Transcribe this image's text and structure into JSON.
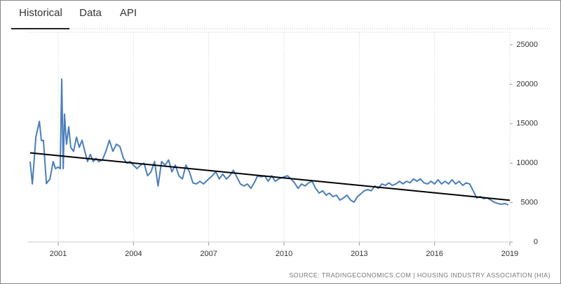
{
  "tabs": [
    "Historical",
    "Data",
    "API"
  ],
  "source": "SOURCE: TRADINGECONOMICS.COM  |  HOUSING INDUSTRY ASSOCIATION (HIA)",
  "chart_data": {
    "type": "line",
    "x": [
      1999.88,
      1999.97,
      2000.11,
      2000.25,
      2000.33,
      2000.41,
      2000.53,
      2000.67,
      2000.8,
      2000.89,
      2001.0,
      2001.08,
      2001.14,
      2001.2,
      2001.25,
      2001.33,
      2001.42,
      2001.5,
      2001.61,
      2001.73,
      2001.84,
      2001.95,
      2002.06,
      2002.17,
      2002.28,
      2002.4,
      2002.51,
      2002.62,
      2002.76,
      2002.9,
      2003.04,
      2003.18,
      2003.32,
      2003.46,
      2003.6,
      2003.74,
      2003.87,
      2004.0,
      2004.14,
      2004.28,
      2004.42,
      2004.56,
      2004.7,
      2004.84,
      2004.98,
      2005.12,
      2005.26,
      2005.4,
      2005.53,
      2005.67,
      2005.81,
      2005.95,
      2006.09,
      2006.23,
      2006.37,
      2006.51,
      2006.65,
      2006.79,
      2007.0,
      2007.14,
      2007.28,
      2007.42,
      2007.56,
      2007.7,
      2007.84,
      2007.98,
      2008.12,
      2008.26,
      2008.4,
      2008.54,
      2008.68,
      2008.81,
      2008.95,
      2009.09,
      2009.23,
      2009.37,
      2009.51,
      2009.65,
      2009.79,
      2010.0,
      2010.14,
      2010.28,
      2010.42,
      2010.56,
      2010.7,
      2010.84,
      2010.98,
      2011.12,
      2011.26,
      2011.4,
      2011.54,
      2011.68,
      2011.81,
      2011.95,
      2012.09,
      2012.23,
      2012.37,
      2012.51,
      2012.65,
      2012.79,
      2012.93,
      2013.06,
      2013.2,
      2013.34,
      2013.48,
      2013.62,
      2013.76,
      2013.9,
      2014.04,
      2014.18,
      2014.32,
      2014.46,
      2014.6,
      2014.74,
      2014.88,
      2015.02,
      2015.16,
      2015.3,
      2015.44,
      2015.58,
      2015.72,
      2015.86,
      2016.0,
      2016.14,
      2016.28,
      2016.42,
      2016.56,
      2016.7,
      2016.84,
      2016.98,
      2017.12,
      2017.26,
      2017.4,
      2017.54,
      2017.68,
      2017.82,
      2017.96,
      2018.1,
      2018.24,
      2018.38,
      2018.52,
      2018.66,
      2018.8,
      2018.94
    ],
    "series": [
      {
        "color": "#4a7ebb",
        "values": [
          10200,
          7360,
          13300,
          15300,
          12850,
          12900,
          7400,
          8000,
          10200,
          9300,
          9500,
          9300,
          20650,
          9300,
          16200,
          12400,
          14600,
          12000,
          11500,
          13300,
          12000,
          12900,
          11500,
          10200,
          11100,
          10200,
          10600,
          10200,
          10400,
          11500,
          12900,
          11500,
          12400,
          12100,
          10600,
          10000,
          10200,
          9750,
          9300,
          9750,
          10000,
          8400,
          8900,
          10200,
          7100,
          10200,
          9750,
          10400,
          8900,
          9750,
          8400,
          8000,
          9750,
          8900,
          7500,
          7360,
          7700,
          7360,
          8000,
          8400,
          8900,
          8000,
          8600,
          8000,
          8400,
          9100,
          8250,
          7360,
          7100,
          7360,
          6800,
          7500,
          8400,
          8250,
          8400,
          7700,
          8400,
          7700,
          8000,
          8250,
          8400,
          8000,
          7500,
          6800,
          7360,
          7100,
          7500,
          7700,
          6800,
          6200,
          6500,
          5940,
          6200,
          5760,
          5940,
          5320,
          5590,
          5940,
          5320,
          5050,
          5760,
          6100,
          6500,
          6650,
          6500,
          7100,
          6800,
          7360,
          7180,
          7500,
          7180,
          7360,
          7700,
          7360,
          7700,
          7500,
          8000,
          7700,
          8000,
          7500,
          7360,
          7700,
          7360,
          7900,
          7360,
          7700,
          7360,
          7900,
          7360,
          7700,
          7180,
          7500,
          7360,
          6500,
          5590,
          5760,
          5500,
          5590,
          5320,
          5050,
          4880,
          4790,
          4880,
          4700
        ]
      }
    ],
    "trend": {
      "x": [
        1999.88,
        2019
      ],
      "values": [
        11300,
        5300
      ],
      "color": "#000000"
    },
    "xlim": [
      1999.77,
      2019
    ],
    "xticks": [
      2001,
      2004,
      2007,
      2010,
      2013,
      2016,
      2019
    ],
    "ylim": [
      0,
      25000
    ],
    "yticks": [
      0,
      5000,
      10000,
      15000,
      20000,
      25000
    ],
    "xgrid": true
  }
}
